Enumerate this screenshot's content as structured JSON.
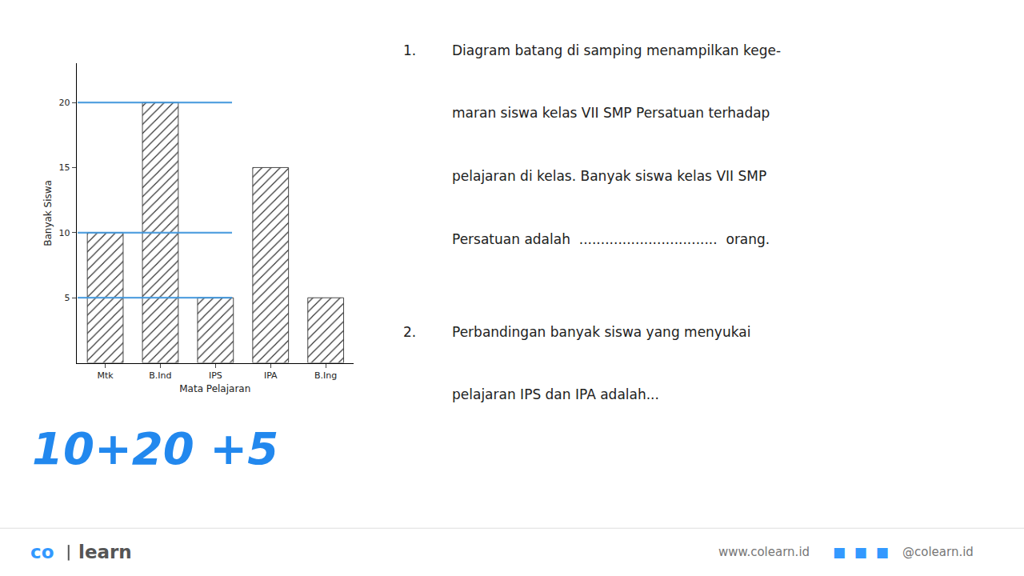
{
  "chart_data": {
    "type": "bar",
    "categories": [
      "Mtk",
      "B.Ind",
      "IPS",
      "IPA",
      "B.Ing"
    ],
    "values": [
      10,
      20,
      5,
      15,
      5
    ],
    "color": "#ffffff",
    "xlabel": "Mata Pelajaran",
    "ylabel": "Banyak Siswa",
    "ylim": [
      0,
      23
    ],
    "yticks": [
      5,
      10,
      15,
      20
    ],
    "grid": false,
    "marked_values": [
      5,
      10,
      20
    ],
    "marked_color": "#4499dd",
    "annotations": [
      {
        "text": "1.",
        "color": "#222222"
      },
      {
        "text": "Diagram batang di samping menampilkan kege-",
        "color": "#222222"
      },
      {
        "text": "maran siswa kelas VII SMP Persatuan terhadap",
        "color": "#222222"
      },
      {
        "text": "pelajaran di kelas. Banyak siswa kelas VII SMP",
        "color": "#222222"
      },
      {
        "text": "Persatuan adalah  ................................  orang.",
        "color": "#222222"
      },
      {
        "text": "2.",
        "color": "#222222"
      },
      {
        "text": "Perbandingan banyak siswa yang menyukai",
        "color": "#222222"
      },
      {
        "text": "pelajaran IPS dan IPA adalah...",
        "color": "#222222"
      },
      {
        "text": "10+20 +5",
        "color": "#2288ee"
      },
      {
        "text": "co",
        "color": "#3399ff"
      },
      {
        "text": "learn",
        "color": "#555555"
      },
      {
        "text": "www.colearn.id",
        "color": "#777777"
      },
      {
        "text": "■  ■  ■",
        "color": "#3399ff"
      },
      {
        "text": "@colearn.id",
        "color": "#777777"
      }
    ]
  }
}
